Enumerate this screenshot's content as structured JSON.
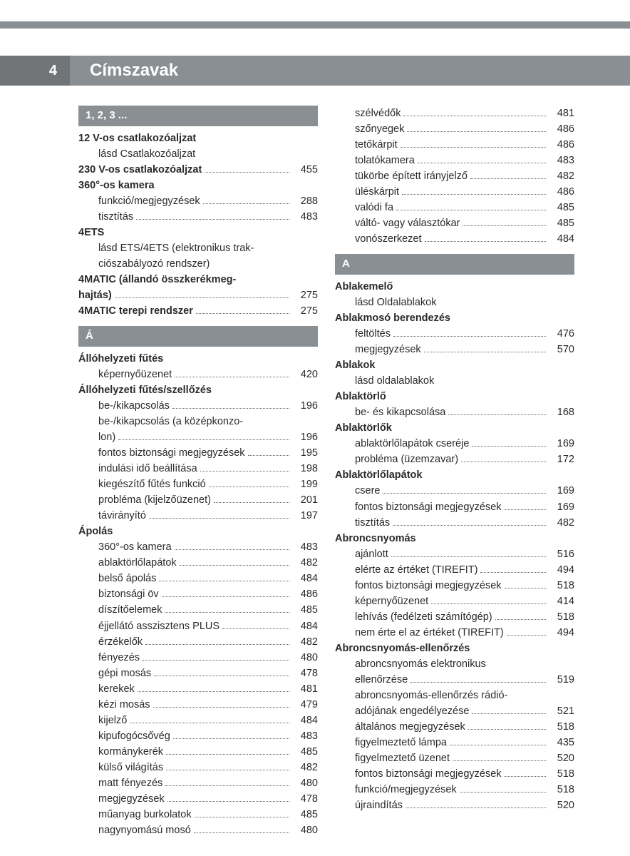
{
  "page_number": "4",
  "title": "Címszavak",
  "colors": {
    "header_bg": "#8a8f93",
    "page_num_bg": "#717578",
    "text": "#2a2a2a",
    "white": "#ffffff"
  },
  "left_col": [
    {
      "type": "section",
      "text": "1, 2, 3 ..."
    },
    {
      "type": "bold",
      "text": "12 V-os csatlakozóaljzat"
    },
    {
      "type": "sub",
      "text": "lásd Csatlakozóaljzat"
    },
    {
      "type": "bold",
      "text": "230 V-os csatlakozóaljzat",
      "page": "455"
    },
    {
      "type": "bold",
      "text": "360°-os kamera"
    },
    {
      "type": "sub",
      "text": "funkció/megjegyzések",
      "page": "288"
    },
    {
      "type": "sub",
      "text": "tisztítás",
      "page": "483"
    },
    {
      "type": "bold",
      "text": "4ETS"
    },
    {
      "type": "sub",
      "text": "lásd ETS/4ETS (elektronikus trak-"
    },
    {
      "type": "sub-cont",
      "text": "ciószabályozó rendszer)"
    },
    {
      "type": "bold",
      "text": "4MATIC (állandó összkerékmeg-"
    },
    {
      "type": "bold-cont",
      "text": "hajtás)",
      "page": "275"
    },
    {
      "type": "bold",
      "text": "4MATIC terepi rendszer",
      "page": "275"
    },
    {
      "type": "section",
      "text": "Á"
    },
    {
      "type": "bold",
      "text": "Állóhelyzeti fűtés"
    },
    {
      "type": "sub",
      "text": "képernyőüzenet",
      "page": "420"
    },
    {
      "type": "bold",
      "text": "Állóhelyzeti fűtés/szellőzés"
    },
    {
      "type": "sub",
      "text": "be-/kikapcsolás",
      "page": "196"
    },
    {
      "type": "sub",
      "text": "be-/kikapcsolás (a középkonzo-"
    },
    {
      "type": "sub-cont",
      "text": "lon)",
      "page": "196"
    },
    {
      "type": "sub",
      "text": "fontos biztonsági megjegyzések",
      "page": "195"
    },
    {
      "type": "sub",
      "text": "indulási idő beállítása",
      "page": "198"
    },
    {
      "type": "sub",
      "text": "kiegészítő fűtés funkció",
      "page": "199"
    },
    {
      "type": "sub",
      "text": "probléma (kijelzőüzenet)",
      "page": "201"
    },
    {
      "type": "sub",
      "text": "távirányító",
      "page": "197"
    },
    {
      "type": "bold",
      "text": "Ápolás"
    },
    {
      "type": "sub",
      "text": "360°-os kamera",
      "page": "483"
    },
    {
      "type": "sub",
      "text": "ablaktörlőlapátok",
      "page": "482"
    },
    {
      "type": "sub",
      "text": "belső ápolás",
      "page": "484"
    },
    {
      "type": "sub",
      "text": "biztonsági öv",
      "page": "486"
    },
    {
      "type": "sub",
      "text": "díszítőelemek",
      "page": "485"
    },
    {
      "type": "sub",
      "text": "éjjellátó asszisztens PLUS",
      "page": "484"
    },
    {
      "type": "sub",
      "text": "érzékelők",
      "page": "482"
    },
    {
      "type": "sub",
      "text": "fényezés",
      "page": "480"
    },
    {
      "type": "sub",
      "text": "gépi mosás",
      "page": "478"
    },
    {
      "type": "sub",
      "text": "kerekek",
      "page": "481"
    },
    {
      "type": "sub",
      "text": "kézi mosás",
      "page": "479"
    },
    {
      "type": "sub",
      "text": "kijelző",
      "page": "484"
    },
    {
      "type": "sub",
      "text": "kipufogócsővég",
      "page": "483"
    },
    {
      "type": "sub",
      "text": "kormánykerék",
      "page": "485"
    },
    {
      "type": "sub",
      "text": "külső világítás",
      "page": "482"
    },
    {
      "type": "sub",
      "text": "matt fényezés",
      "page": "480"
    },
    {
      "type": "sub",
      "text": "megjegyzések",
      "page": "478"
    },
    {
      "type": "sub",
      "text": "műanyag burkolatok",
      "page": "485"
    },
    {
      "type": "sub",
      "text": "nagynyomású mosó",
      "page": "480"
    }
  ],
  "right_col": [
    {
      "type": "sub",
      "text": "szélvédők",
      "page": "481"
    },
    {
      "type": "sub",
      "text": "szőnyegek",
      "page": "486"
    },
    {
      "type": "sub",
      "text": "tetőkárpit",
      "page": "486"
    },
    {
      "type": "sub",
      "text": "tolatókamera",
      "page": "483"
    },
    {
      "type": "sub",
      "text": "tükörbe épített irányjelző",
      "page": "482"
    },
    {
      "type": "sub",
      "text": "üléskárpit",
      "page": "486"
    },
    {
      "type": "sub",
      "text": "valódi fa",
      "page": "485"
    },
    {
      "type": "sub",
      "text": "váltó- vagy választókar",
      "page": "485"
    },
    {
      "type": "sub",
      "text": "vonószerkezet",
      "page": "484"
    },
    {
      "type": "section",
      "text": "A"
    },
    {
      "type": "bold",
      "text": "Ablakemelő"
    },
    {
      "type": "sub",
      "text": "lásd Oldalablakok"
    },
    {
      "type": "bold",
      "text": "Ablakmosó berendezés"
    },
    {
      "type": "sub",
      "text": "feltöltés",
      "page": "476"
    },
    {
      "type": "sub",
      "text": "megjegyzések",
      "page": "570"
    },
    {
      "type": "bold",
      "text": "Ablakok"
    },
    {
      "type": "sub",
      "text": "lásd oldalablakok"
    },
    {
      "type": "bold",
      "text": "Ablaktörlő"
    },
    {
      "type": "sub",
      "text": "be- és kikapcsolása",
      "page": "168"
    },
    {
      "type": "bold",
      "text": "Ablaktörlők"
    },
    {
      "type": "sub",
      "text": "ablaktörlőlapátok cseréje",
      "page": "169"
    },
    {
      "type": "sub",
      "text": "probléma (üzemzavar)",
      "page": "172"
    },
    {
      "type": "bold",
      "text": "Ablaktörlőlapátok"
    },
    {
      "type": "sub",
      "text": "csere",
      "page": "169"
    },
    {
      "type": "sub",
      "text": "fontos biztonsági megjegyzések",
      "page": "169"
    },
    {
      "type": "sub",
      "text": "tisztítás",
      "page": "482"
    },
    {
      "type": "bold",
      "text": "Abroncsnyomás"
    },
    {
      "type": "sub",
      "text": "ajánlott",
      "page": "516"
    },
    {
      "type": "sub",
      "text": "elérte az értéket (TIREFIT)",
      "page": "494"
    },
    {
      "type": "sub",
      "text": "fontos biztonsági megjegyzések",
      "page": "518"
    },
    {
      "type": "sub",
      "text": "képernyőüzenet",
      "page": "414"
    },
    {
      "type": "sub",
      "text": "lehívás (fedélzeti számítógép)",
      "page": "518"
    },
    {
      "type": "sub",
      "text": "nem érte el az értéket (TIREFIT)",
      "page": "494"
    },
    {
      "type": "bold",
      "text": "Abroncsnyomás-ellenőrzés"
    },
    {
      "type": "sub",
      "text": "abroncsnyomás elektronikus"
    },
    {
      "type": "sub-cont",
      "text": "ellenőrzése",
      "page": "519"
    },
    {
      "type": "sub",
      "text": "abroncsnyomás-ellenőrzés rádió-"
    },
    {
      "type": "sub-cont",
      "text": "adójának engedélyezése",
      "page": "521"
    },
    {
      "type": "sub",
      "text": "általános megjegyzések",
      "page": "518"
    },
    {
      "type": "sub",
      "text": "figyelmeztető lámpa",
      "page": "435"
    },
    {
      "type": "sub",
      "text": "figyelmeztető üzenet",
      "page": "520"
    },
    {
      "type": "sub",
      "text": "fontos biztonsági megjegyzések",
      "page": "518"
    },
    {
      "type": "sub",
      "text": "funkció/megjegyzések",
      "page": "518"
    },
    {
      "type": "sub",
      "text": "újraindítás",
      "page": "520"
    }
  ]
}
